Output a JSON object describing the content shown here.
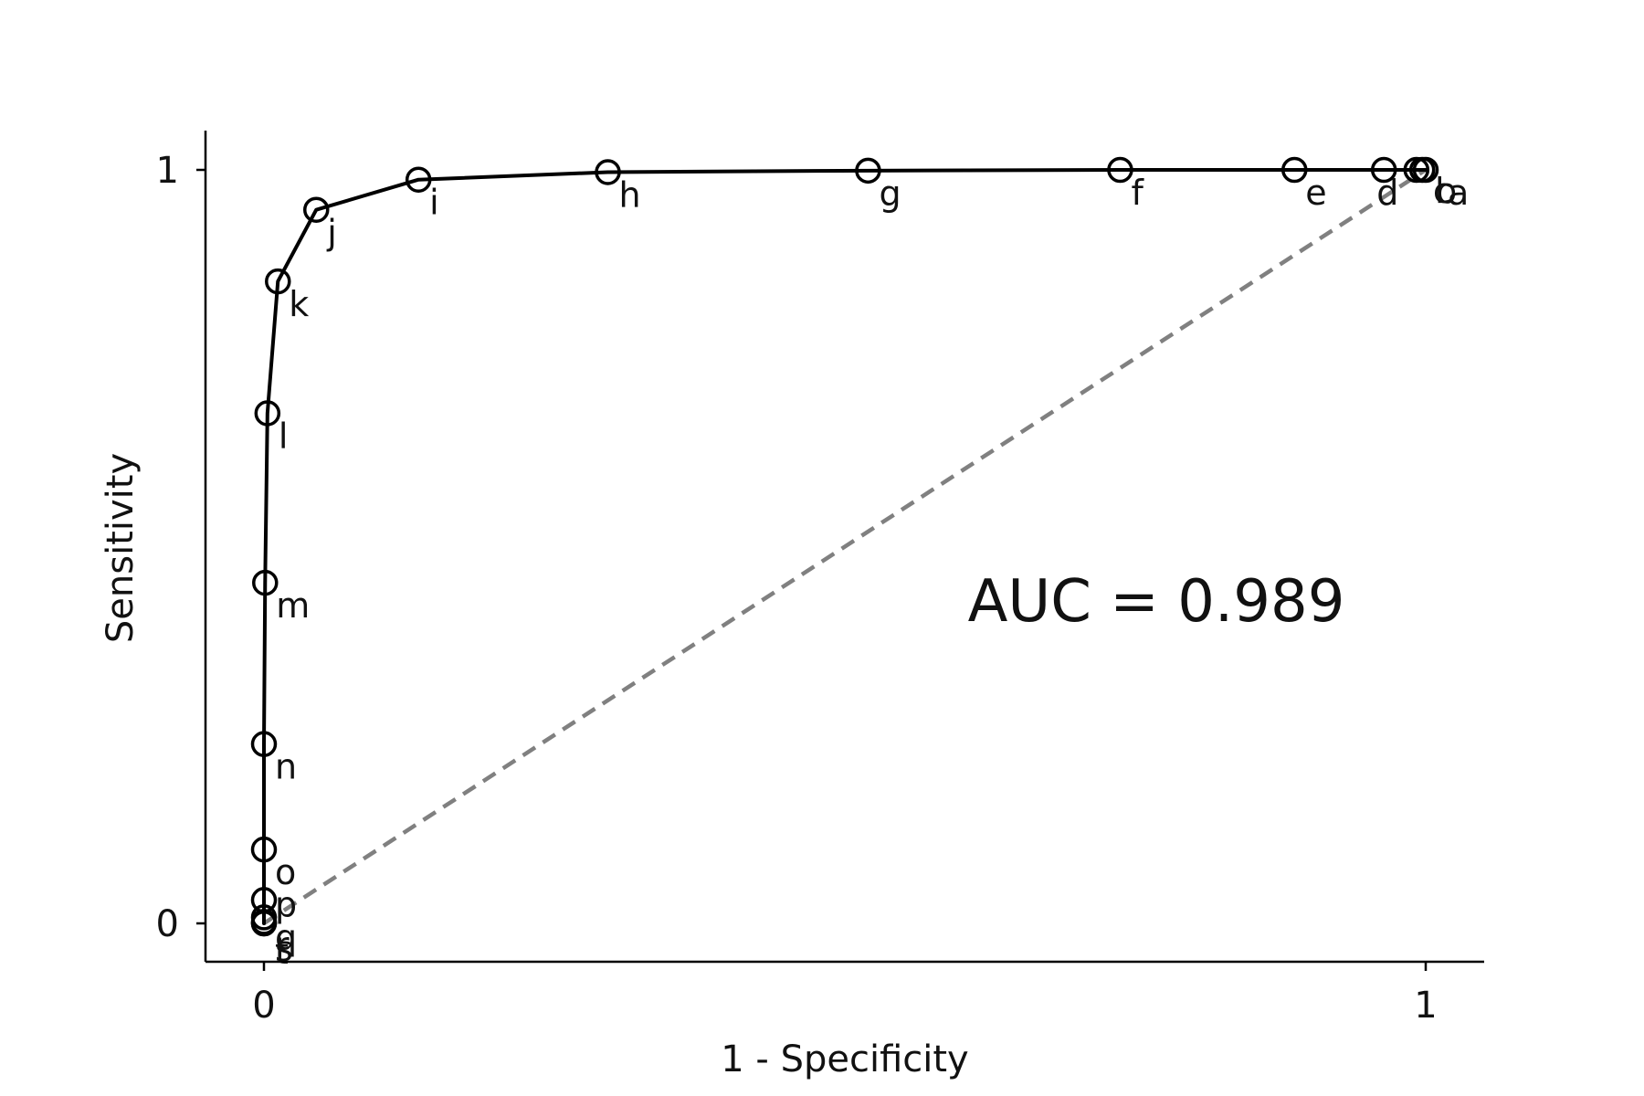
{
  "chart_data": {
    "type": "line",
    "xlabel": "1 - Specificity",
    "ylabel": "Sensitivity",
    "xlim": [
      0,
      1
    ],
    "ylim": [
      0,
      1
    ],
    "x_ticks": [
      {
        "value": 0,
        "label": "0"
      },
      {
        "value": 1,
        "label": "1"
      }
    ],
    "y_ticks": [
      {
        "value": 0,
        "label": "0"
      },
      {
        "value": 1,
        "label": "1"
      }
    ],
    "annotation": "AUC = 0.989",
    "grid": false,
    "legend": "none",
    "series": [
      {
        "color": "#000000",
        "marker": "open-circle",
        "points": [
          {
            "label": "a",
            "x": 1.0,
            "y": 1.0
          },
          {
            "label": "b",
            "x": 0.997,
            "y": 1.0
          },
          {
            "label": "c",
            "x": 0.992,
            "y": 1.0
          },
          {
            "label": "d",
            "x": 0.964,
            "y": 1.0
          },
          {
            "label": "e",
            "x": 0.887,
            "y": 1.0
          },
          {
            "label": "f",
            "x": 0.737,
            "y": 1.0
          },
          {
            "label": "g",
            "x": 0.52,
            "y": 0.999
          },
          {
            "label": "h",
            "x": 0.296,
            "y": 0.997
          },
          {
            "label": "i",
            "x": 0.133,
            "y": 0.987
          },
          {
            "label": "j",
            "x": 0.045,
            "y": 0.947
          },
          {
            "label": "k",
            "x": 0.012,
            "y": 0.852
          },
          {
            "label": "l",
            "x": 0.003,
            "y": 0.677
          },
          {
            "label": "m",
            "x": 0.001,
            "y": 0.452
          },
          {
            "label": "n",
            "x": 0.0,
            "y": 0.238
          },
          {
            "label": "o",
            "x": 0.0,
            "y": 0.098
          },
          {
            "label": "p",
            "x": 0.0,
            "y": 0.031
          },
          {
            "label": "q",
            "x": 0.0,
            "y": 0.008
          },
          {
            "label": "r",
            "x": 0.0,
            "y": 0.002
          },
          {
            "label": "s",
            "x": 0.0,
            "y": 0.0
          },
          {
            "label": "t",
            "x": 0.0,
            "y": 0.0
          }
        ]
      },
      {
        "color": "#808080",
        "line_style": "dashed",
        "points": [
          {
            "x": 0,
            "y": 0
          },
          {
            "x": 1,
            "y": 1
          }
        ]
      }
    ]
  }
}
